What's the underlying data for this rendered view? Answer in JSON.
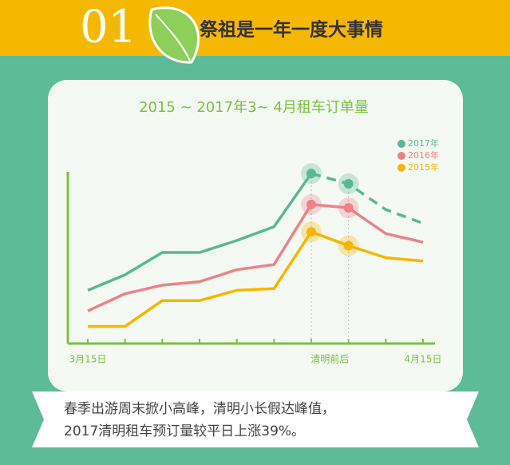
{
  "header": {
    "number": "01",
    "title": "祭祖是一年一度大事情"
  },
  "chart_data": {
    "type": "line",
    "title": "2015 ~ 2017年3~ 4月租车订单量",
    "categories": [
      "3月15日",
      null,
      null,
      null,
      null,
      null,
      "清明前后",
      null,
      null,
      "4月15日"
    ],
    "ylim": [
      0,
      100
    ],
    "legend": "top-right",
    "highlight": [
      6,
      7
    ],
    "dashed_from": 6,
    "series": [
      {
        "name": "2017年",
        "color": "#5bb896",
        "values": [
          31,
          40,
          53,
          53,
          60,
          68,
          99,
          93,
          78,
          70
        ]
      },
      {
        "name": "2016年",
        "color": "#ee8288",
        "values": [
          19,
          29,
          34,
          36,
          43,
          46,
          81,
          79,
          64,
          59
        ]
      },
      {
        "name": "2015年",
        "color": "#f7b500",
        "values": [
          10,
          10,
          25,
          25,
          31,
          32,
          65,
          57,
          50,
          48
        ]
      }
    ]
  },
  "caption": {
    "lines": [
      "春季出游周末掀小高峰，清明小长假达峰值，",
      "2017清明租车预订量较平日上涨39%。"
    ]
  }
}
